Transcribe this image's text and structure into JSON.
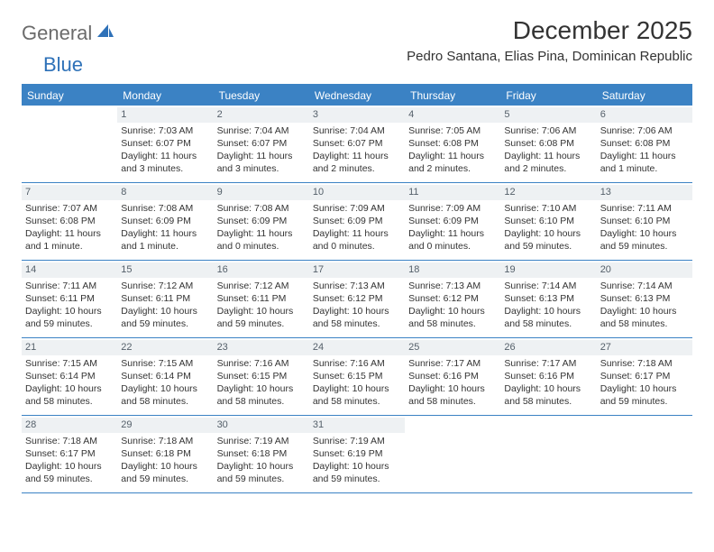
{
  "brand": {
    "general": "General",
    "blue": "Blue"
  },
  "title": "December 2025",
  "location": "Pedro Santana, Elias Pina, Dominican Republic",
  "colors": {
    "header_blue": "#3b82c4",
    "daynum_bg": "#eef1f3",
    "text": "#333333",
    "logo_gray": "#6b6b6b",
    "logo_blue": "#2e71b8"
  },
  "dow": [
    "Sunday",
    "Monday",
    "Tuesday",
    "Wednesday",
    "Thursday",
    "Friday",
    "Saturday"
  ],
  "weeks": [
    [
      null,
      {
        "n": "1",
        "sr": "7:03 AM",
        "ss": "6:07 PM",
        "dl": "11 hours and 3 minutes."
      },
      {
        "n": "2",
        "sr": "7:04 AM",
        "ss": "6:07 PM",
        "dl": "11 hours and 3 minutes."
      },
      {
        "n": "3",
        "sr": "7:04 AM",
        "ss": "6:07 PM",
        "dl": "11 hours and 2 minutes."
      },
      {
        "n": "4",
        "sr": "7:05 AM",
        "ss": "6:08 PM",
        "dl": "11 hours and 2 minutes."
      },
      {
        "n": "5",
        "sr": "7:06 AM",
        "ss": "6:08 PM",
        "dl": "11 hours and 2 minutes."
      },
      {
        "n": "6",
        "sr": "7:06 AM",
        "ss": "6:08 PM",
        "dl": "11 hours and 1 minute."
      }
    ],
    [
      {
        "n": "7",
        "sr": "7:07 AM",
        "ss": "6:08 PM",
        "dl": "11 hours and 1 minute."
      },
      {
        "n": "8",
        "sr": "7:08 AM",
        "ss": "6:09 PM",
        "dl": "11 hours and 1 minute."
      },
      {
        "n": "9",
        "sr": "7:08 AM",
        "ss": "6:09 PM",
        "dl": "11 hours and 0 minutes."
      },
      {
        "n": "10",
        "sr": "7:09 AM",
        "ss": "6:09 PM",
        "dl": "11 hours and 0 minutes."
      },
      {
        "n": "11",
        "sr": "7:09 AM",
        "ss": "6:09 PM",
        "dl": "11 hours and 0 minutes."
      },
      {
        "n": "12",
        "sr": "7:10 AM",
        "ss": "6:10 PM",
        "dl": "10 hours and 59 minutes."
      },
      {
        "n": "13",
        "sr": "7:11 AM",
        "ss": "6:10 PM",
        "dl": "10 hours and 59 minutes."
      }
    ],
    [
      {
        "n": "14",
        "sr": "7:11 AM",
        "ss": "6:11 PM",
        "dl": "10 hours and 59 minutes."
      },
      {
        "n": "15",
        "sr": "7:12 AM",
        "ss": "6:11 PM",
        "dl": "10 hours and 59 minutes."
      },
      {
        "n": "16",
        "sr": "7:12 AM",
        "ss": "6:11 PM",
        "dl": "10 hours and 59 minutes."
      },
      {
        "n": "17",
        "sr": "7:13 AM",
        "ss": "6:12 PM",
        "dl": "10 hours and 58 minutes."
      },
      {
        "n": "18",
        "sr": "7:13 AM",
        "ss": "6:12 PM",
        "dl": "10 hours and 58 minutes."
      },
      {
        "n": "19",
        "sr": "7:14 AM",
        "ss": "6:13 PM",
        "dl": "10 hours and 58 minutes."
      },
      {
        "n": "20",
        "sr": "7:14 AM",
        "ss": "6:13 PM",
        "dl": "10 hours and 58 minutes."
      }
    ],
    [
      {
        "n": "21",
        "sr": "7:15 AM",
        "ss": "6:14 PM",
        "dl": "10 hours and 58 minutes."
      },
      {
        "n": "22",
        "sr": "7:15 AM",
        "ss": "6:14 PM",
        "dl": "10 hours and 58 minutes."
      },
      {
        "n": "23",
        "sr": "7:16 AM",
        "ss": "6:15 PM",
        "dl": "10 hours and 58 minutes."
      },
      {
        "n": "24",
        "sr": "7:16 AM",
        "ss": "6:15 PM",
        "dl": "10 hours and 58 minutes."
      },
      {
        "n": "25",
        "sr": "7:17 AM",
        "ss": "6:16 PM",
        "dl": "10 hours and 58 minutes."
      },
      {
        "n": "26",
        "sr": "7:17 AM",
        "ss": "6:16 PM",
        "dl": "10 hours and 58 minutes."
      },
      {
        "n": "27",
        "sr": "7:18 AM",
        "ss": "6:17 PM",
        "dl": "10 hours and 59 minutes."
      }
    ],
    [
      {
        "n": "28",
        "sr": "7:18 AM",
        "ss": "6:17 PM",
        "dl": "10 hours and 59 minutes."
      },
      {
        "n": "29",
        "sr": "7:18 AM",
        "ss": "6:18 PM",
        "dl": "10 hours and 59 minutes."
      },
      {
        "n": "30",
        "sr": "7:19 AM",
        "ss": "6:18 PM",
        "dl": "10 hours and 59 minutes."
      },
      {
        "n": "31",
        "sr": "7:19 AM",
        "ss": "6:19 PM",
        "dl": "10 hours and 59 minutes."
      },
      null,
      null,
      null
    ]
  ],
  "labels": {
    "sunrise": "Sunrise:",
    "sunset": "Sunset:",
    "daylight": "Daylight:"
  }
}
